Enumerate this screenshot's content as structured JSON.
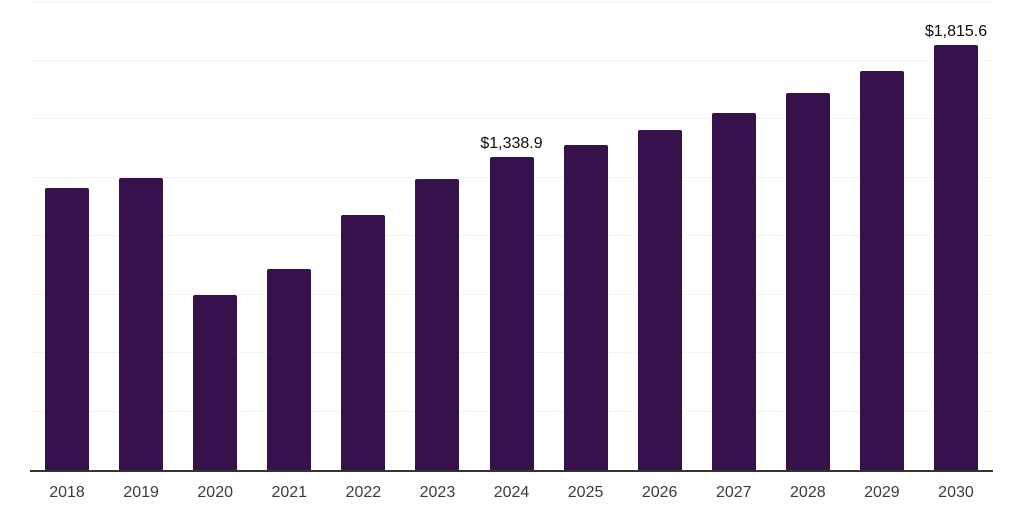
{
  "chart_data": {
    "type": "bar",
    "title": "",
    "xlabel": "",
    "ylabel": "",
    "categories": [
      "2018",
      "2019",
      "2020",
      "2021",
      "2022",
      "2023",
      "2024",
      "2025",
      "2026",
      "2027",
      "2028",
      "2029",
      "2030"
    ],
    "values": [
      1207,
      1250,
      747,
      859,
      1091,
      1245,
      1338.9,
      1391,
      1451,
      1524,
      1610,
      1705,
      1815.6
    ],
    "data_labels": {
      "2024": "$1,338.9",
      "2030": "$1,815.6"
    },
    "ylim": [
      0,
      2000
    ],
    "gridline_step": 250,
    "grid": true,
    "legend": false,
    "bar_color": "#36114c",
    "axis_line_color": "#333333",
    "gridline_color": "#f2f2f4",
    "tick_label_color": "#3b3b3b",
    "data_label_color": "#0d0d0d",
    "background_color": "#ffffff"
  }
}
